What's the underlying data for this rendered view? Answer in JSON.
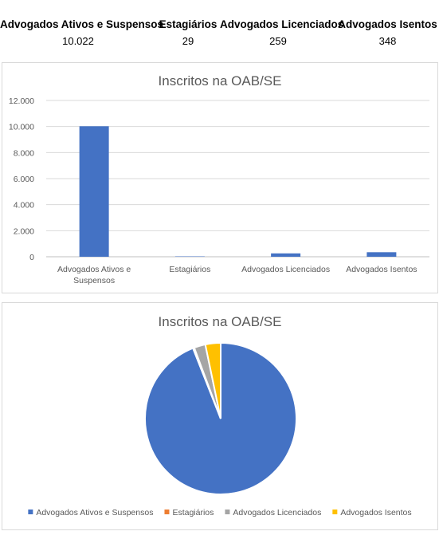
{
  "summary": {
    "columns": [
      {
        "header": "Advogados Ativos e Suspensos",
        "value": "10.022"
      },
      {
        "header": "Estagiários",
        "value": "29"
      },
      {
        "header": "Advogados Licenciados",
        "value": "259"
      },
      {
        "header": "Advogados Isentos",
        "value": "348"
      }
    ]
  },
  "chart_data": [
    {
      "type": "bar",
      "title": "Inscritos na OAB/SE",
      "categories": [
        "Advogados Ativos e Suspensos",
        "Estagiários",
        "Advogados Licenciados",
        "Advogados Isentos"
      ],
      "values": [
        10022,
        29,
        259,
        348
      ],
      "ylim": [
        0,
        12000
      ],
      "yticks": [
        "0",
        "2.000",
        "4.000",
        "6.000",
        "8.000",
        "10.000",
        "12.000"
      ],
      "grid": true,
      "colors": [
        "#4472c4"
      ]
    },
    {
      "type": "pie",
      "title": "Inscritos na OAB/SE",
      "categories": [
        "Advogados Ativos e Suspensos",
        "Estagiários",
        "Advogados Licenciados",
        "Advogados Isentos"
      ],
      "values": [
        10022,
        29,
        259,
        348
      ],
      "colors": [
        "#4472c4",
        "#ed7d31",
        "#a5a5a5",
        "#ffc000"
      ],
      "legend": "bottom"
    }
  ]
}
